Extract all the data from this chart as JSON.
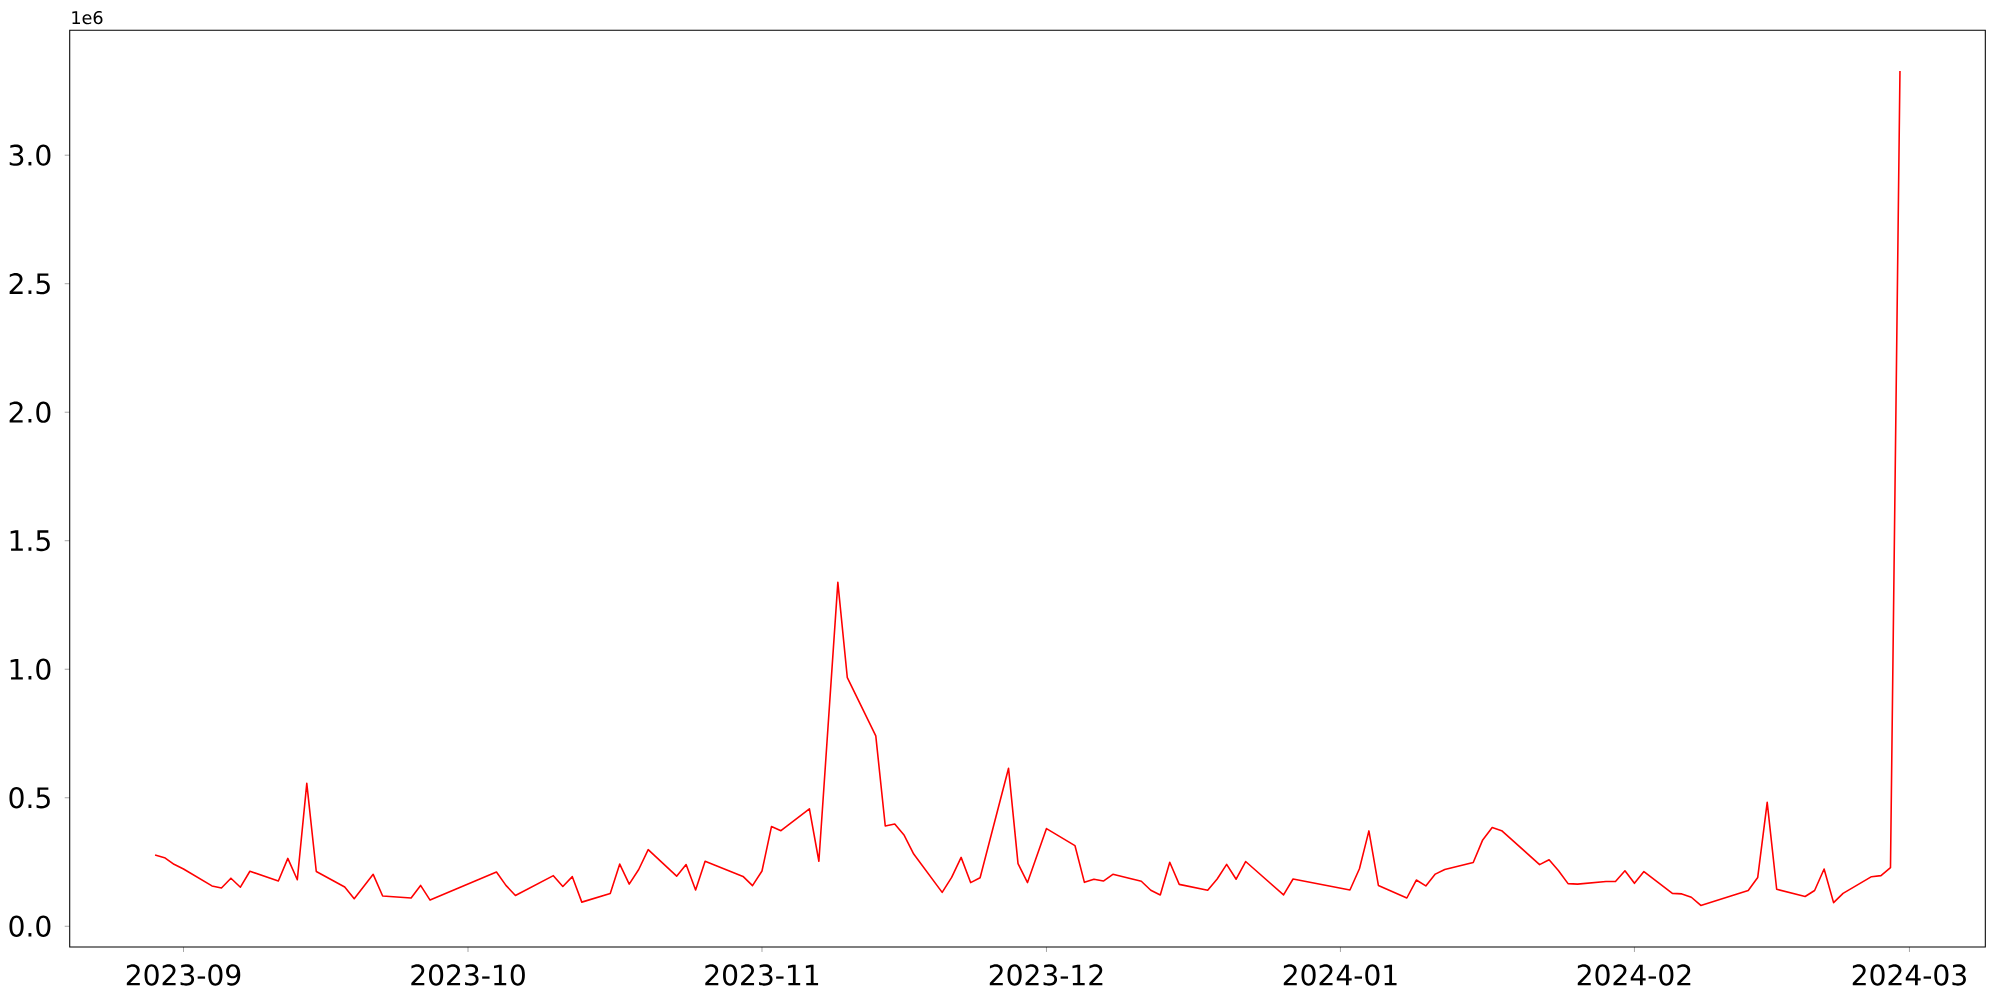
{
  "chart_data": {
    "type": "line",
    "x": [
      "2023-08-29",
      "2023-08-30",
      "2023-08-31",
      "2023-09-01",
      "2023-09-04",
      "2023-09-05",
      "2023-09-06",
      "2023-09-07",
      "2023-09-08",
      "2023-09-11",
      "2023-09-12",
      "2023-09-13",
      "2023-09-14",
      "2023-09-15",
      "2023-09-18",
      "2023-09-19",
      "2023-09-21",
      "2023-09-22",
      "2023-09-25",
      "2023-09-26",
      "2023-09-27",
      "2023-10-04",
      "2023-10-05",
      "2023-10-06",
      "2023-10-10",
      "2023-10-11",
      "2023-10-12",
      "2023-10-13",
      "2023-10-16",
      "2023-10-17",
      "2023-10-18",
      "2023-10-19",
      "2023-10-20",
      "2023-10-23",
      "2023-10-24",
      "2023-10-25",
      "2023-10-26",
      "2023-10-30",
      "2023-10-31",
      "2023-11-01",
      "2023-11-02",
      "2023-11-03",
      "2023-11-06",
      "2023-11-07",
      "2023-11-09",
      "2023-11-10",
      "2023-11-13",
      "2023-11-14",
      "2023-11-15",
      "2023-11-16",
      "2023-11-17",
      "2023-11-20",
      "2023-11-21",
      "2023-11-22",
      "2023-11-23",
      "2023-11-24",
      "2023-11-27",
      "2023-11-28",
      "2023-11-29",
      "2023-12-01",
      "2023-12-04",
      "2023-12-05",
      "2023-12-06",
      "2023-12-07",
      "2023-12-08",
      "2023-12-11",
      "2023-12-12",
      "2023-12-13",
      "2023-12-14",
      "2023-12-15",
      "2023-12-18",
      "2023-12-19",
      "2023-12-20",
      "2023-12-21",
      "2023-12-22",
      "2023-12-26",
      "2023-12-27",
      "2024-01-02",
      "2024-01-03",
      "2024-01-04",
      "2024-01-05",
      "2024-01-08",
      "2024-01-09",
      "2024-01-10",
      "2024-01-11",
      "2024-01-12",
      "2024-01-15",
      "2024-01-16",
      "2024-01-17",
      "2024-01-18",
      "2024-01-22",
      "2024-01-23",
      "2024-01-24",
      "2024-01-25",
      "2024-01-26",
      "2024-01-29",
      "2024-01-30",
      "2024-01-31",
      "2024-02-01",
      "2024-02-02",
      "2024-02-05",
      "2024-02-06",
      "2024-02-07",
      "2024-02-08",
      "2024-02-13",
      "2024-02-14",
      "2024-02-15",
      "2024-02-16",
      "2024-02-19",
      "2024-02-20",
      "2024-02-21",
      "2024-02-22",
      "2024-02-23",
      "2024-02-26",
      "2024-02-27",
      "2024-02-28",
      "2024-02-29"
    ],
    "series": [
      {
        "color": "#ff0000",
        "values": [
          0.277,
          0.267,
          0.241,
          0.223,
          0.157,
          0.149,
          0.187,
          0.152,
          0.214,
          0.176,
          0.264,
          0.181,
          0.556,
          0.213,
          0.153,
          0.107,
          0.202,
          0.118,
          0.11,
          0.159,
          0.102,
          0.211,
          0.159,
          0.12,
          0.197,
          0.155,
          0.193,
          0.094,
          0.128,
          0.242,
          0.164,
          0.221,
          0.298,
          0.195,
          0.24,
          0.141,
          0.253,
          0.194,
          0.158,
          0.215,
          0.388,
          0.372,
          0.457,
          0.253,
          1.338,
          0.967,
          0.741,
          0.39,
          0.398,
          0.354,
          0.281,
          0.132,
          0.19,
          0.268,
          0.17,
          0.189,
          0.615,
          0.244,
          0.17,
          0.38,
          0.314,
          0.171,
          0.183,
          0.176,
          0.202,
          0.175,
          0.14,
          0.122,
          0.249,
          0.163,
          0.14,
          0.184,
          0.241,
          0.183,
          0.252,
          0.122,
          0.184,
          0.141,
          0.224,
          0.371,
          0.159,
          0.11,
          0.18,
          0.157,
          0.203,
          0.221,
          0.248,
          0.336,
          0.384,
          0.372,
          0.24,
          0.259,
          0.216,
          0.166,
          0.164,
          0.174,
          0.174,
          0.216,
          0.167,
          0.213,
          0.128,
          0.126,
          0.113,
          0.081,
          0.139,
          0.19,
          0.482,
          0.144,
          0.116,
          0.139,
          0.223,
          0.092,
          0.128,
          0.193,
          0.197,
          0.228,
          3.328
        ]
      }
    ],
    "xlim": [
      "2023-08-20",
      "2024-03-09"
    ],
    "xticks": [
      {
        "value": "2023-09-01",
        "label": "2023-09"
      },
      {
        "value": "2023-10-01",
        "label": "2023-10"
      },
      {
        "value": "2023-11-01",
        "label": "2023-11"
      },
      {
        "value": "2023-12-01",
        "label": "2023-12"
      },
      {
        "value": "2024-01-01",
        "label": "2024-01"
      },
      {
        "value": "2024-02-01",
        "label": "2024-02"
      },
      {
        "value": "2024-03-01",
        "label": "2024-03"
      }
    ],
    "ylim": [
      -0.0805,
      3.486
    ],
    "yticks": [
      {
        "value": 0,
        "label": "0.0"
      },
      0.5,
      {
        "value": 1,
        "label": "1.0"
      },
      1.5,
      {
        "value": 2,
        "label": "2.0"
      },
      2.5,
      {
        "value": 3,
        "label": "3.0"
      }
    ],
    "annotations": [
      "1e6"
    ]
  }
}
